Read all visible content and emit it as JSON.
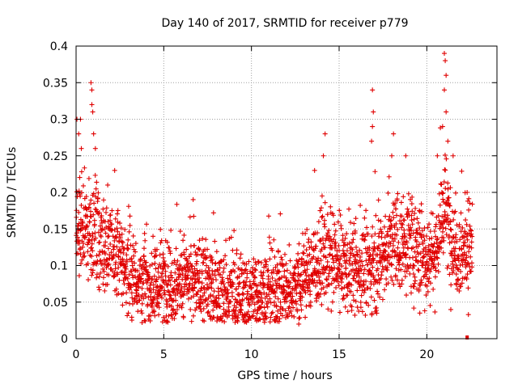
{
  "chart_data": {
    "type": "scatter",
    "title": "Day 140 of 2017, SRMTID for receiver p779",
    "xlabel": "GPS time / hours",
    "ylabel": "SRMTID / TECUs",
    "xlim": [
      0,
      24
    ],
    "ylim": [
      0,
      0.4
    ],
    "x_ticks": [
      0,
      5,
      10,
      15,
      20
    ],
    "x_tick_labels": [
      "0",
      "5",
      "10",
      "15",
      "20"
    ],
    "y_ticks": [
      0,
      0.05,
      0.1,
      0.15,
      0.2,
      0.25,
      0.3,
      0.35,
      0.4
    ],
    "y_tick_labels": [
      "0",
      "0.05",
      "0.1",
      "0.15",
      "0.2",
      "0.25",
      "0.3",
      "0.35",
      "0.4"
    ],
    "grid": true,
    "marker": "plus",
    "series_color": "#e00000",
    "trend": [
      {
        "x": 0.0,
        "y": 0.16
      },
      {
        "x": 0.5,
        "y": 0.15
      },
      {
        "x": 1.0,
        "y": 0.15
      },
      {
        "x": 1.5,
        "y": 0.13
      },
      {
        "x": 2.0,
        "y": 0.12
      },
      {
        "x": 2.5,
        "y": 0.11
      },
      {
        "x": 3.0,
        "y": 0.09
      },
      {
        "x": 4.0,
        "y": 0.075
      },
      {
        "x": 5.0,
        "y": 0.075
      },
      {
        "x": 6.0,
        "y": 0.08
      },
      {
        "x": 7.0,
        "y": 0.08
      },
      {
        "x": 8.0,
        "y": 0.065
      },
      {
        "x": 9.0,
        "y": 0.06
      },
      {
        "x": 10.0,
        "y": 0.06
      },
      {
        "x": 11.0,
        "y": 0.065
      },
      {
        "x": 12.0,
        "y": 0.07
      },
      {
        "x": 13.0,
        "y": 0.085
      },
      {
        "x": 14.0,
        "y": 0.11
      },
      {
        "x": 15.0,
        "y": 0.1
      },
      {
        "x": 16.0,
        "y": 0.09
      },
      {
        "x": 17.0,
        "y": 0.1
      },
      {
        "x": 18.0,
        "y": 0.13
      },
      {
        "x": 19.0,
        "y": 0.13
      },
      {
        "x": 20.0,
        "y": 0.11
      },
      {
        "x": 20.5,
        "y": 0.12
      },
      {
        "x": 21.0,
        "y": 0.18
      },
      {
        "x": 21.5,
        "y": 0.13
      },
      {
        "x": 22.0,
        "y": 0.12
      },
      {
        "x": 22.6,
        "y": 0.13
      }
    ],
    "spread": 0.03,
    "n_points": 2400,
    "x_range": [
      0,
      22.6
    ],
    "highlights": [
      {
        "x": 0.05,
        "y": 0.3
      },
      {
        "x": 0.15,
        "y": 0.28
      },
      {
        "x": 0.25,
        "y": 0.3
      },
      {
        "x": 0.3,
        "y": 0.26
      },
      {
        "x": 0.85,
        "y": 0.35
      },
      {
        "x": 0.9,
        "y": 0.34
      },
      {
        "x": 0.95,
        "y": 0.31
      },
      {
        "x": 0.9,
        "y": 0.32
      },
      {
        "x": 1.0,
        "y": 0.28
      },
      {
        "x": 1.1,
        "y": 0.26
      },
      {
        "x": 2.2,
        "y": 0.23
      },
      {
        "x": 14.2,
        "y": 0.28
      },
      {
        "x": 14.1,
        "y": 0.25
      },
      {
        "x": 13.6,
        "y": 0.23
      },
      {
        "x": 16.9,
        "y": 0.34
      },
      {
        "x": 16.95,
        "y": 0.31
      },
      {
        "x": 16.9,
        "y": 0.29
      },
      {
        "x": 16.85,
        "y": 0.27
      },
      {
        "x": 18.1,
        "y": 0.28
      },
      {
        "x": 18.0,
        "y": 0.25
      },
      {
        "x": 18.8,
        "y": 0.25
      },
      {
        "x": 21.0,
        "y": 0.39
      },
      {
        "x": 21.05,
        "y": 0.38
      },
      {
        "x": 21.1,
        "y": 0.36
      },
      {
        "x": 21.0,
        "y": 0.34
      },
      {
        "x": 21.1,
        "y": 0.31
      },
      {
        "x": 20.9,
        "y": 0.29
      },
      {
        "x": 21.2,
        "y": 0.27
      },
      {
        "x": 20.6,
        "y": 0.25
      },
      {
        "x": 21.5,
        "y": 0.25
      },
      {
        "x": 22.3,
        "y": 0.2
      },
      {
        "x": 12.7,
        "y": 0.02
      },
      {
        "x": 19.6,
        "y": 0.035
      }
    ],
    "baseline_marker": {
      "x": 22.3,
      "y": 0.0
    }
  }
}
